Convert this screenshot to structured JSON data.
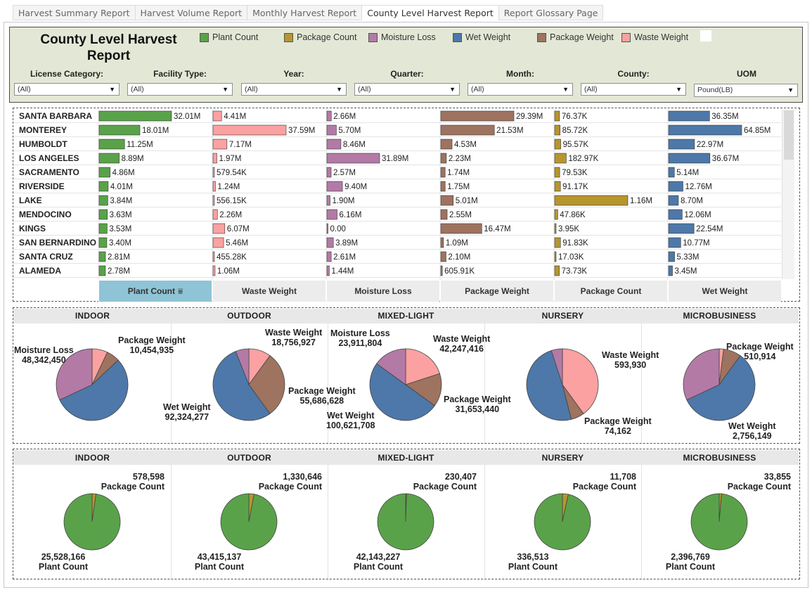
{
  "tabs": [
    {
      "label": "Harvest Summary Report",
      "active": false
    },
    {
      "label": "Harvest Volume Report",
      "active": false
    },
    {
      "label": "Monthly Harvest Report",
      "active": false
    },
    {
      "label": "County Level Harvest Report",
      "active": true
    },
    {
      "label": "Report Glossary Page",
      "active": false
    }
  ],
  "report_title_line1": "County Level Harvest",
  "report_title_line2": "Report",
  "legend": [
    {
      "label": "Plant Count",
      "color": "#5aa24a"
    },
    {
      "label": "Package Count",
      "color": "#b6962e"
    },
    {
      "label": "Moisture Loss",
      "color": "#b37aa6"
    },
    {
      "label": "Wet Weight",
      "color": "#4d78a9"
    },
    {
      "label": "Package Weight",
      "color": "#9e7360"
    },
    {
      "label": "Waste Weight",
      "color": "#fba1a1"
    }
  ],
  "filters": [
    {
      "label": "License Category:",
      "value": "(All)"
    },
    {
      "label": "Facility Type:",
      "value": "(All)"
    },
    {
      "label": "Year:",
      "value": "(All)"
    },
    {
      "label": "Quarter:",
      "value": "(All)"
    },
    {
      "label": "Month:",
      "value": "(All)"
    },
    {
      "label": "County:",
      "value": "(All)"
    },
    {
      "label": "UOM",
      "value": "Pound(LB)"
    }
  ],
  "column_headers": [
    "Plant Count",
    "Waste Weight",
    "Moisture Loss",
    "Package Weight",
    "Package Count",
    "Wet Weight"
  ],
  "sort_icon": "sort-descending-icon",
  "chart_data": [
    {
      "type": "bar",
      "orientation": "horizontal",
      "categories": [
        "SANTA BARBARA",
        "MONTEREY",
        "HUMBOLDT",
        "LOS ANGELES",
        "SACRAMENTO",
        "RIVERSIDE",
        "LAKE",
        "MENDOCINO",
        "KINGS",
        "SAN BERNARDINO",
        "SANTA CRUZ",
        "ALAMEDA"
      ],
      "series": [
        {
          "name": "Plant Count",
          "color": "#5aa24a",
          "max": 32010000,
          "values": [
            32010000,
            18010000,
            11250000,
            8890000,
            4860000,
            4010000,
            3840000,
            3630000,
            3530000,
            3400000,
            2810000,
            2780000
          ],
          "labels": [
            "32.01M",
            "18.01M",
            "11.25M",
            "8.89M",
            "4.86M",
            "4.01M",
            "3.84M",
            "3.63M",
            "3.53M",
            "3.40M",
            "2.81M",
            "2.78M"
          ]
        },
        {
          "name": "Waste Weight",
          "color": "#fba1a1",
          "max": 37590000,
          "values": [
            4410000,
            37590000,
            7170000,
            1970000,
            579540,
            1240000,
            556150,
            2260000,
            6070000,
            5460000,
            455280,
            1060000
          ],
          "labels": [
            "4.41M",
            "37.59M",
            "7.17M",
            "1.97M",
            "579.54K",
            "1.24M",
            "556.15K",
            "2.26M",
            "6.07M",
            "5.46M",
            "455.28K",
            "1.06M"
          ]
        },
        {
          "name": "Moisture Loss",
          "color": "#b37aa6",
          "max": 31890000,
          "values": [
            2660000,
            5700000,
            8460000,
            31890000,
            2570000,
            9400000,
            1900000,
            6160000,
            0,
            3890000,
            2610000,
            1440000
          ],
          "labels": [
            "2.66M",
            "5.70M",
            "8.46M",
            "31.89M",
            "2.57M",
            "9.40M",
            "1.90M",
            "6.16M",
            "0.00",
            "3.89M",
            "2.61M",
            "1.44M"
          ]
        },
        {
          "name": "Package Weight",
          "color": "#9e7360",
          "max": 29390000,
          "values": [
            29390000,
            21530000,
            4530000,
            2230000,
            1740000,
            1750000,
            5010000,
            2550000,
            16470000,
            1090000,
            2100000,
            605910
          ],
          "labels": [
            "29.39M",
            "21.53M",
            "4.53M",
            "2.23M",
            "1.74M",
            "1.75M",
            "5.01M",
            "2.55M",
            "16.47M",
            "1.09M",
            "2.10M",
            "605.91K"
          ]
        },
        {
          "name": "Package Count",
          "color": "#b6962e",
          "max": 1160000,
          "values": [
            76370,
            85720,
            95570,
            182970,
            79530,
            91170,
            1160000,
            47860,
            3950,
            91830,
            17030,
            73730
          ],
          "labels": [
            "76.37K",
            "85.72K",
            "95.57K",
            "182.97K",
            "79.53K",
            "91.17K",
            "1.16M",
            "47.86K",
            "3.95K",
            "91.83K",
            "17.03K",
            "73.73K"
          ]
        },
        {
          "name": "Wet Weight",
          "color": "#4d78a9",
          "max": 64850000,
          "values": [
            36350000,
            64850000,
            22970000,
            36670000,
            5140000,
            12760000,
            8700000,
            12060000,
            22540000,
            10770000,
            5330000,
            3450000
          ],
          "labels": [
            "36.35M",
            "64.85M",
            "22.97M",
            "36.67M",
            "5.14M",
            "12.76M",
            "8.70M",
            "12.06M",
            "22.54M",
            "10.77M",
            "5.33M",
            "3.45M"
          ]
        }
      ]
    },
    {
      "type": "pie",
      "charts": [
        {
          "name": "INDOOR",
          "series": [
            {
              "name": "Waste Weight",
              "value": null,
              "color": "#fba1a1"
            },
            {
              "name": "Package Weight",
              "value": 10454935,
              "color": "#9e7360"
            },
            {
              "name": "Wet Weight",
              "value": null,
              "color": "#4d78a9"
            },
            {
              "name": "Moisture Loss",
              "value": 48342450,
              "color": "#b37aa6"
            }
          ]
        },
        {
          "name": "OUTDOOR",
          "series": [
            {
              "name": "Waste Weight",
              "value": 18756927,
              "color": "#fba1a1"
            },
            {
              "name": "Package Weight",
              "value": 55686628,
              "color": "#9e7360"
            },
            {
              "name": "Wet Weight",
              "value": 92324277,
              "color": "#4d78a9"
            },
            {
              "name": "Moisture Loss",
              "value": null,
              "color": "#b37aa6"
            }
          ]
        },
        {
          "name": "MIXED-LIGHT",
          "series": [
            {
              "name": "Waste Weight",
              "value": 42247416,
              "color": "#fba1a1"
            },
            {
              "name": "Package Weight",
              "value": 31653440,
              "color": "#9e7360"
            },
            {
              "name": "Wet Weight",
              "value": 100621708,
              "color": "#4d78a9"
            },
            {
              "name": "Moisture Loss",
              "value": 23911804,
              "color": "#b37aa6"
            }
          ]
        },
        {
          "name": "NURSERY",
          "series": [
            {
              "name": "Waste Weight",
              "value": 593930,
              "color": "#fba1a1"
            },
            {
              "name": "Package Weight",
              "value": 74162,
              "color": "#9e7360"
            },
            {
              "name": "Wet Weight",
              "value": null,
              "color": "#4d78a9"
            },
            {
              "name": "Moisture Loss",
              "value": null,
              "color": "#b37aa6"
            }
          ]
        },
        {
          "name": "MICROBUSINESS",
          "series": [
            {
              "name": "Waste Weight",
              "value": null,
              "color": "#fba1a1"
            },
            {
              "name": "Package Weight",
              "value": 510914,
              "color": "#9e7360"
            },
            {
              "name": "Wet Weight",
              "value": 2756149,
              "color": "#4d78a9"
            },
            {
              "name": "Moisture Loss",
              "value": null,
              "color": "#b37aa6"
            }
          ]
        }
      ]
    },
    {
      "type": "pie",
      "charts": [
        {
          "name": "INDOOR",
          "series": [
            {
              "name": "Package Count",
              "value": 578598,
              "color": "#b6962e"
            },
            {
              "name": "Plant Count",
              "value": 25528166,
              "color": "#5aa24a"
            }
          ]
        },
        {
          "name": "OUTDOOR",
          "series": [
            {
              "name": "Package Count",
              "value": 1330646,
              "color": "#b6962e"
            },
            {
              "name": "Plant Count",
              "value": 43415137,
              "color": "#5aa24a"
            }
          ]
        },
        {
          "name": "MIXED-LIGHT",
          "series": [
            {
              "name": "Package Count",
              "value": 230407,
              "color": "#b6962e"
            },
            {
              "name": "Plant Count",
              "value": 42143227,
              "color": "#5aa24a"
            }
          ]
        },
        {
          "name": "NURSERY",
          "series": [
            {
              "name": "Package Count",
              "value": 11708,
              "color": "#b6962e"
            },
            {
              "name": "Plant Count",
              "value": 336513,
              "color": "#5aa24a"
            }
          ]
        },
        {
          "name": "MICROBUSINESS",
          "series": [
            {
              "name": "Package Count",
              "value": 33855,
              "color": "#b6962e"
            },
            {
              "name": "Plant Count",
              "value": 2396769,
              "color": "#5aa24a"
            }
          ]
        }
      ]
    }
  ],
  "weight_pie_labels": [
    [
      "Package Weight",
      "10,454,935",
      "Moisture Loss",
      "48,342,450"
    ],
    [
      "Waste Weight",
      "18,756,927",
      "Package Weight",
      "55,686,628",
      "Wet  Weight",
      "92,324,277"
    ],
    [
      "Moisture Loss",
      "23,911,804",
      "Waste Weight",
      "42,247,416",
      "Package Weight",
      "31,653,440",
      "Wet  Weight",
      "100,621,708"
    ],
    [
      "Waste Weight",
      "593,930",
      "Package Weight",
      "74,162"
    ],
    [
      "Package Weight",
      "510,914",
      "Wet  Weight",
      "2,756,149"
    ]
  ],
  "count_pie_labels": [
    [
      "578,598",
      "Package  Count",
      "25,528,166",
      "Plant  Count"
    ],
    [
      "1,330,646",
      "Package  Count",
      "43,415,137",
      "Plant  Count"
    ],
    [
      "230,407",
      "Package  Count",
      "42,143,227",
      "Plant  Count"
    ],
    [
      "11,708",
      "Package  Count",
      "336,513",
      "Plant  Count"
    ],
    [
      "33,855",
      "Package  Count",
      "2,396,769",
      "Plant  Count"
    ]
  ]
}
